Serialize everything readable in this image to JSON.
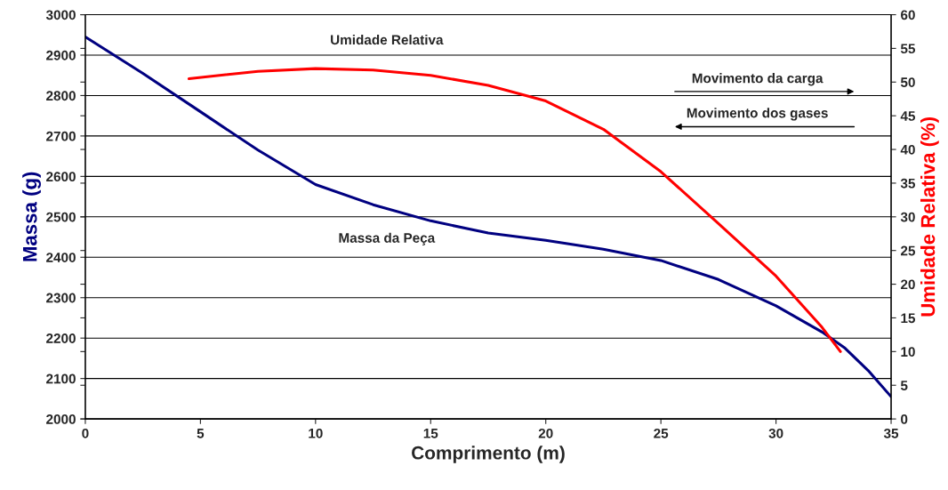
{
  "chart_data": {
    "type": "line",
    "xlabel": "Comprimento (m)",
    "ylabel": "Massa (g)",
    "y2label": "Umidade Relativa (%)",
    "xlim": [
      0,
      35
    ],
    "xticks": [
      0,
      5,
      10,
      15,
      20,
      25,
      30,
      35
    ],
    "ylim": [
      2000,
      3000
    ],
    "yticks": [
      2000,
      2100,
      2200,
      2300,
      2400,
      2500,
      2600,
      2700,
      2800,
      2900,
      3000
    ],
    "y2lim": [
      0,
      60
    ],
    "y2ticks": [
      0,
      5,
      10,
      15,
      20,
      25,
      30,
      35,
      40,
      45,
      50,
      55,
      60
    ],
    "grid": "y",
    "legend": false,
    "marker": "none",
    "line_style": "solid",
    "series": [
      {
        "color": "#000080",
        "x": [
          0,
          2.5,
          5,
          7.5,
          10,
          12.5,
          15,
          17.5,
          20,
          22.5,
          25,
          27.5,
          30,
          32,
          33,
          34,
          35
        ],
        "values": [
          2945,
          2855,
          2760,
          2665,
          2580,
          2530,
          2490,
          2460,
          2442,
          2420,
          2392,
          2345,
          2280,
          2215,
          2175,
          2120,
          2055
        ]
      },
      {
        "color": "#ff0000",
        "axis": "y2",
        "x": [
          4.5,
          7.5,
          10,
          12.5,
          15,
          17.5,
          20,
          22.5,
          25,
          27.5,
          30,
          32,
          32.8
        ],
        "values": [
          50.5,
          51.6,
          52,
          51.8,
          51,
          49.5,
          47.2,
          43,
          36.7,
          29,
          21.2,
          13.6,
          10
        ]
      }
    ],
    "annotations": [
      "Umidade Relativa",
      "Massa da Peça",
      "Movimento da carga",
      "Movimento dos gases"
    ]
  }
}
